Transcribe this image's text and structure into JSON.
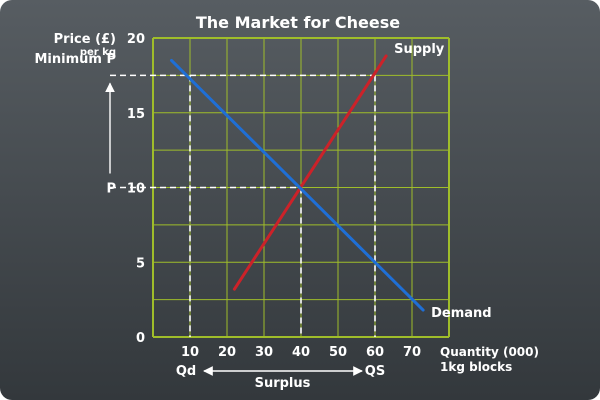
{
  "chart_data": {
    "type": "line",
    "title": "The Market for Cheese",
    "ylabel": "Price (£)",
    "ylabel_sub": "per kg",
    "xlabel": "Quantity (000)",
    "xlabel_sub": "1kg blocks",
    "xlim": [
      0,
      80
    ],
    "ylim": [
      0,
      20
    ],
    "xticks": [
      10,
      20,
      30,
      40,
      50,
      60,
      70
    ],
    "yticks": [
      0,
      5,
      10,
      15,
      20
    ],
    "grid": true,
    "series": [
      {
        "name": "Supply",
        "color": "#cc2229",
        "x": [
          22,
          63
        ],
        "y": [
          3.2,
          18.8
        ]
      },
      {
        "name": "Demand",
        "color": "#1f6fd6",
        "x": [
          5,
          73
        ],
        "y": [
          18.5,
          1.8
        ]
      }
    ],
    "reference_lines": [
      {
        "name": "minimum-price",
        "label": "Minimum P",
        "y": 17.5
      },
      {
        "name": "equilibrium-price",
        "label": "P",
        "y": 10
      },
      {
        "name": "quantity-demanded",
        "label": "Qd",
        "x": 10
      },
      {
        "name": "equilibrium-quantity",
        "x": 40
      },
      {
        "name": "quantity-supplied",
        "label": "QS",
        "x": 60
      }
    ],
    "annotations": {
      "surplus": "Surplus"
    },
    "colors": {
      "background": "#3f4448",
      "grid": "#9fbd2a",
      "text": "#ffffff"
    }
  }
}
